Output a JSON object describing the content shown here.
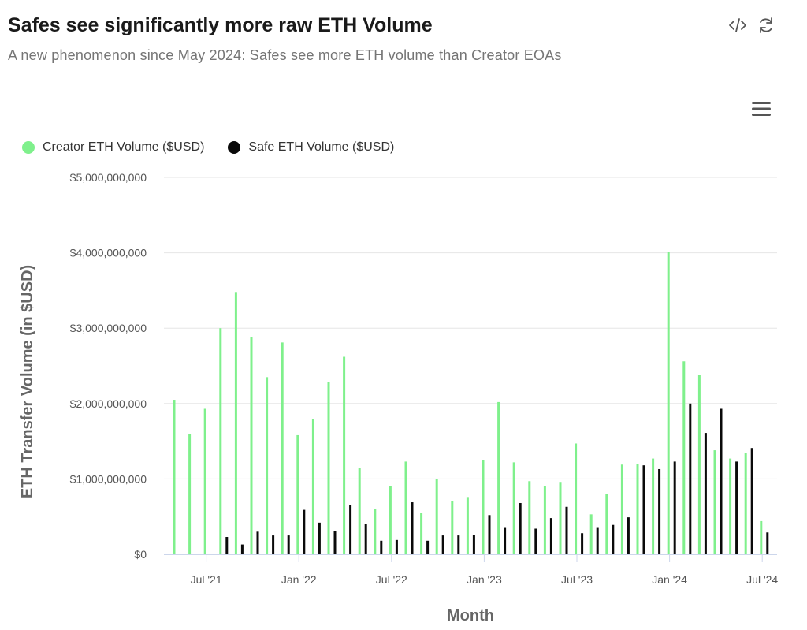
{
  "header": {
    "title": "Safes see significantly more raw ETH Volume",
    "subtitle": "A new phenomenon since May 2024: Safes see more ETH volume than Creator EOAs"
  },
  "icons": {
    "code": "code-icon",
    "refresh": "refresh-icon",
    "menu": "hamburger-menu-icon"
  },
  "colors": {
    "creator": "#7ff08c",
    "safe": "#0a0a0a",
    "grid": "#e6e6e6",
    "axis_text": "#555555"
  },
  "chart_data": {
    "type": "bar",
    "xlabel": "Month",
    "ylabel": "ETH Transfer Volume (in $USD)",
    "ylim": [
      0,
      5000000000
    ],
    "y_ticks": [
      0,
      1000000000,
      2000000000,
      3000000000,
      4000000000,
      5000000000
    ],
    "y_tick_labels": [
      "$0",
      "$1,000,000,000",
      "$2,000,000,000",
      "$3,000,000,000",
      "$4,000,000,000",
      "$5,000,000,000"
    ],
    "x_tick_labels": [
      "Jul '21",
      "Jan '22",
      "Jul '22",
      "Jan '23",
      "Jul '23",
      "Jan '24",
      "Jul '24"
    ],
    "x_tick_positions": [
      "2021-07",
      "2022-01",
      "2022-07",
      "2023-01",
      "2023-07",
      "2024-01",
      "2024-07"
    ],
    "legend_position": "top-left",
    "grid": true,
    "categories": [
      "2021-06",
      "2021-07",
      "2021-08",
      "2021-09",
      "2021-10",
      "2021-11",
      "2021-12",
      "2022-01",
      "2022-02",
      "2022-03",
      "2022-04",
      "2022-05",
      "2022-06",
      "2022-07",
      "2022-08",
      "2022-09",
      "2022-10",
      "2022-11",
      "2022-12",
      "2023-01",
      "2023-02",
      "2023-03",
      "2023-04",
      "2023-05",
      "2023-06",
      "2023-07",
      "2023-08",
      "2023-09",
      "2023-10",
      "2023-11",
      "2023-12",
      "2024-01",
      "2024-02",
      "2024-03",
      "2024-04",
      "2024-05",
      "2024-06",
      "2024-07",
      "2024-08"
    ],
    "series": [
      {
        "name": "Creator ETH Volume ($USD)",
        "values": [
          2050000000,
          1600000000,
          1930000000,
          3000000000,
          3480000000,
          2880000000,
          2350000000,
          2810000000,
          1580000000,
          1790000000,
          2290000000,
          2620000000,
          1150000000,
          600000000,
          900000000,
          1230000000,
          550000000,
          1000000000,
          710000000,
          760000000,
          1250000000,
          2020000000,
          1220000000,
          970000000,
          910000000,
          960000000,
          1470000000,
          530000000,
          800000000,
          1190000000,
          1200000000,
          1270000000,
          4010000000,
          2560000000,
          2380000000,
          1380000000,
          1270000000,
          1340000000,
          440000000
        ]
      },
      {
        "name": "Safe ETH Volume ($USD)",
        "values": [
          null,
          null,
          null,
          230000000,
          130000000,
          300000000,
          250000000,
          250000000,
          590000000,
          420000000,
          310000000,
          650000000,
          400000000,
          180000000,
          190000000,
          690000000,
          180000000,
          250000000,
          250000000,
          260000000,
          520000000,
          350000000,
          680000000,
          340000000,
          480000000,
          630000000,
          280000000,
          350000000,
          390000000,
          490000000,
          1180000000,
          1130000000,
          1230000000,
          2000000000,
          1610000000,
          1930000000,
          1230000000,
          1410000000,
          290000000
        ]
      }
    ]
  }
}
